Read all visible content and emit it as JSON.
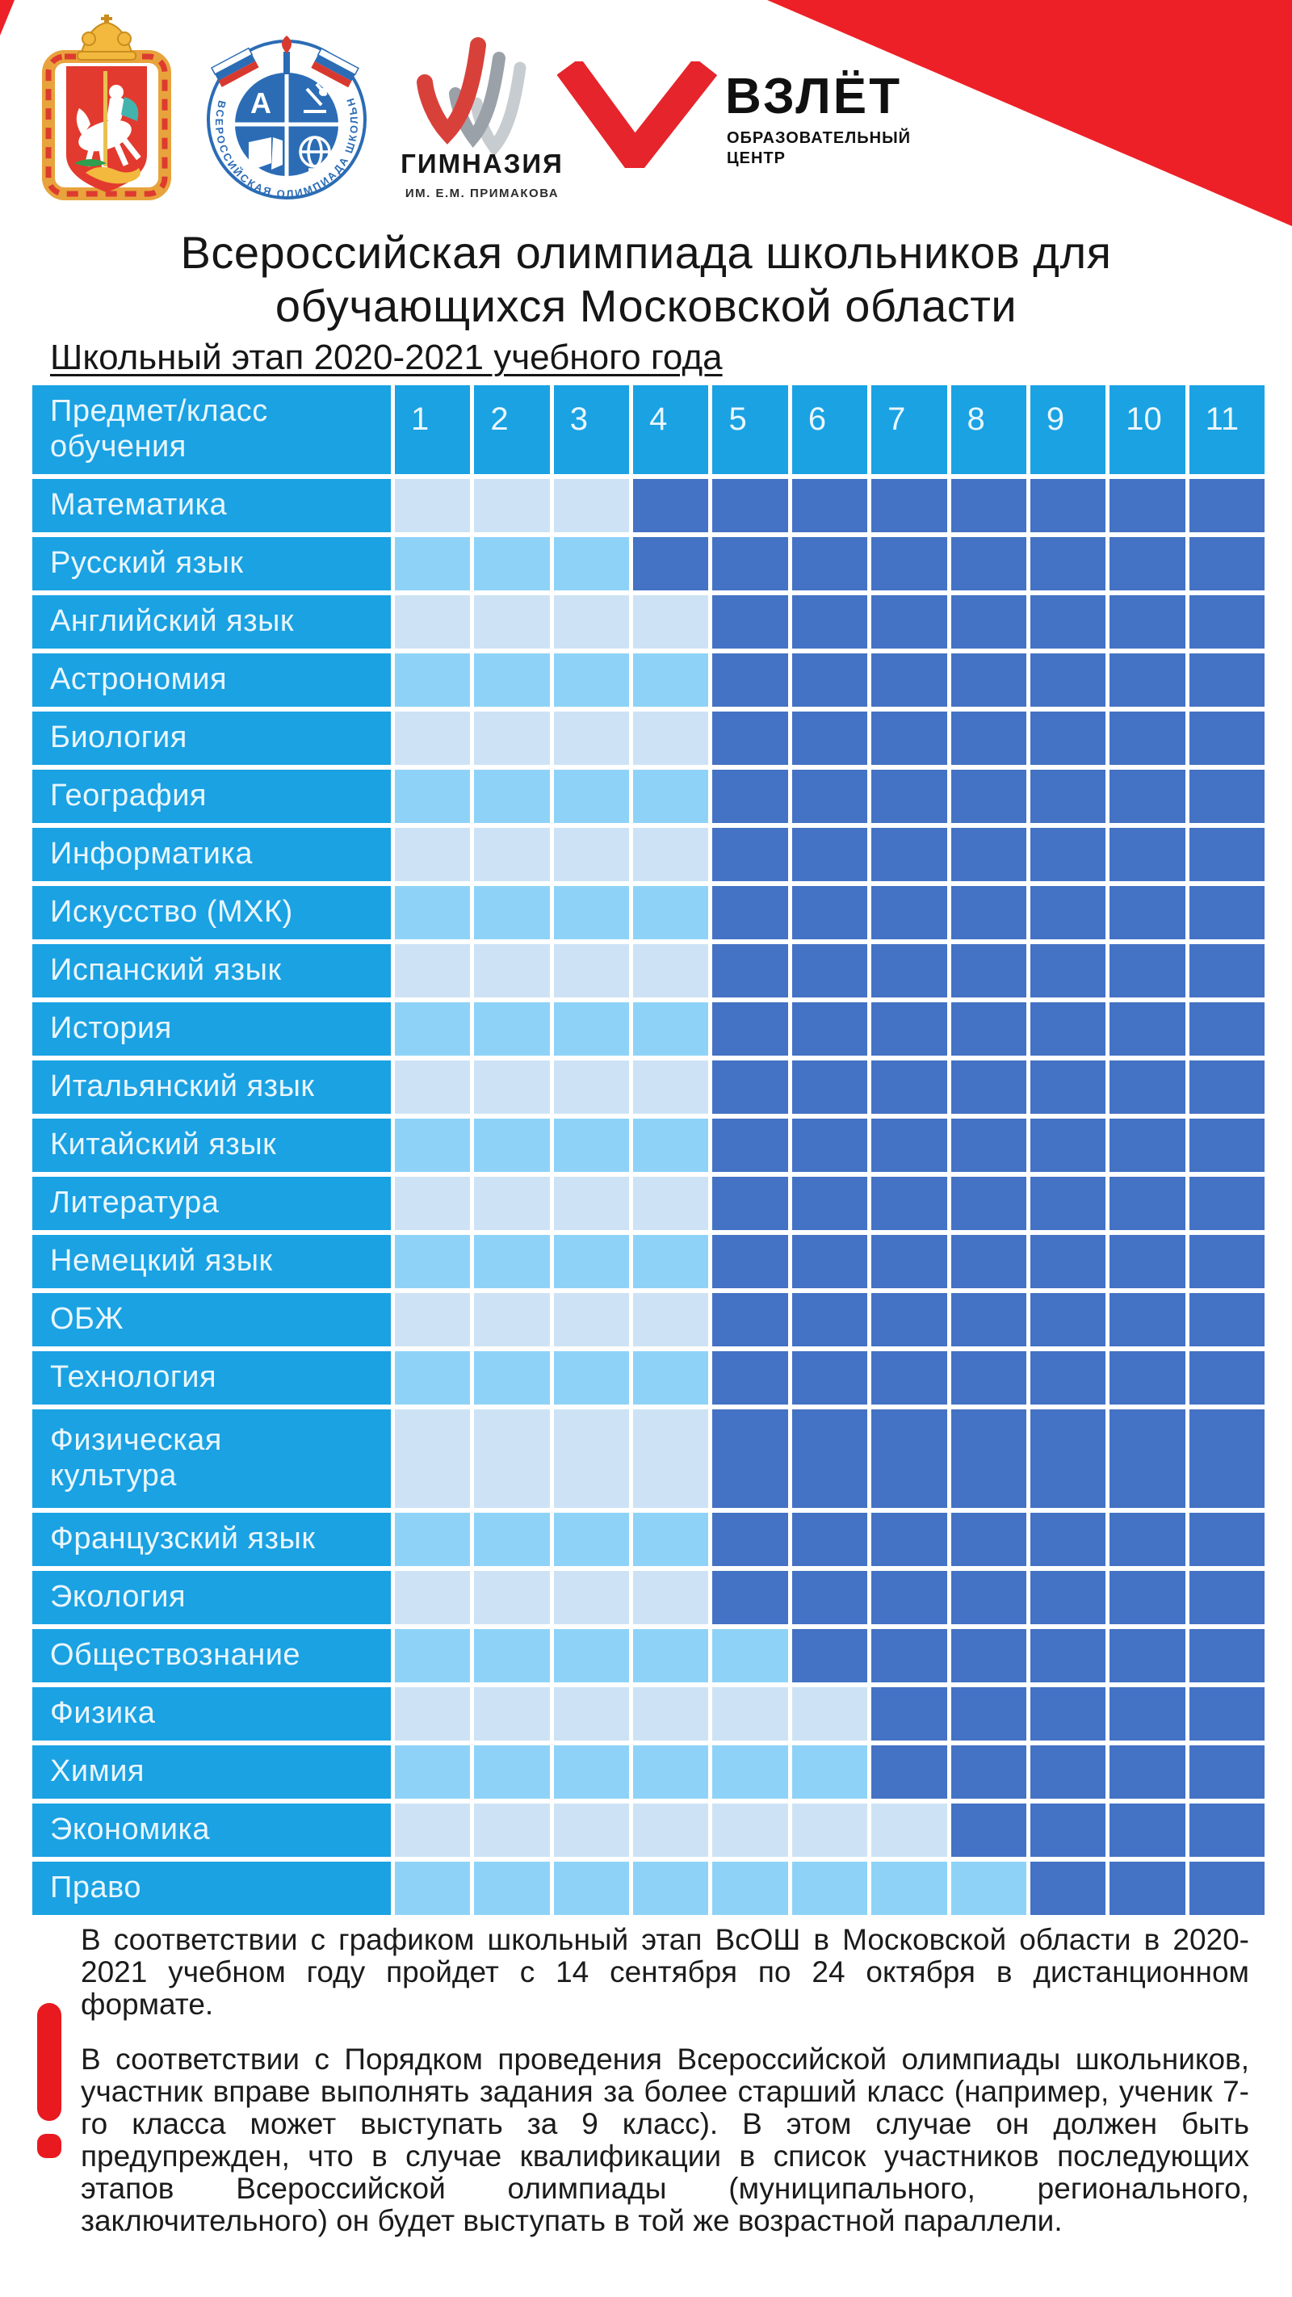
{
  "colors": {
    "cyan": "#1aa2e3",
    "pale": "#cde3f5",
    "sky": "#8ed3f7",
    "dark": "#4472c4",
    "red": "#ed2027",
    "excl": "#e8191f",
    "logo_blue": "#2b6cb5"
  },
  "logos": {
    "coat_of_arms": {
      "alt": "Герб Московской области"
    },
    "vsosh": {
      "ring_text": "ВСЕРОССИЙСКАЯ ОЛИМПИАДА ШКОЛЬНИКОВ"
    },
    "gymnasium": {
      "title": "ГИМНАЗИЯ",
      "subtitle": "ИМ. Е.М. ПРИМАКОВА"
    },
    "vzlet": {
      "title": "ВЗЛЁТ",
      "subtitle_line1": "ОБРАЗОВАТЕЛЬНЫЙ",
      "subtitle_line2": "ЦЕНТР"
    }
  },
  "title": {
    "line1": "Всероссийская олимпиада школьников для",
    "line2": "обучающихся Московской области"
  },
  "subtitle": "Школьный этап 2020-2021 учебного года",
  "table": {
    "header_label": "Предмет/класс обучения",
    "grades": [
      "1",
      "2",
      "3",
      "4",
      "5",
      "6",
      "7",
      "8",
      "9",
      "10",
      "11"
    ],
    "rows": [
      {
        "subject": "Математика",
        "dark_from": 4,
        "shade": "pale"
      },
      {
        "subject": "Русский язык",
        "dark_from": 4,
        "shade": "sky"
      },
      {
        "subject": "Английский язык",
        "dark_from": 5,
        "shade": "pale"
      },
      {
        "subject": "Астрономия",
        "dark_from": 5,
        "shade": "sky"
      },
      {
        "subject": "Биология",
        "dark_from": 5,
        "shade": "pale"
      },
      {
        "subject": "География",
        "dark_from": 5,
        "shade": "sky"
      },
      {
        "subject": "Информатика",
        "dark_from": 5,
        "shade": "pale"
      },
      {
        "subject": "Искусство (МХК)",
        "dark_from": 5,
        "shade": "sky"
      },
      {
        "subject": "Испанский язык",
        "dark_from": 5,
        "shade": "pale"
      },
      {
        "subject": "История",
        "dark_from": 5,
        "shade": "sky"
      },
      {
        "subject": "Итальянский язык",
        "dark_from": 5,
        "shade": "pale"
      },
      {
        "subject": "Китайский язык",
        "dark_from": 5,
        "shade": "sky"
      },
      {
        "subject": "Литература",
        "dark_from": 5,
        "shade": "pale"
      },
      {
        "subject": "Немецкий язык",
        "dark_from": 5,
        "shade": "sky"
      },
      {
        "subject": "ОБЖ",
        "dark_from": 5,
        "shade": "pale"
      },
      {
        "subject": "Технология",
        "dark_from": 5,
        "shade": "sky"
      },
      {
        "subject": "Физическая культура",
        "dark_from": 5,
        "shade": "pale",
        "tall": true
      },
      {
        "subject": "Французский язык",
        "dark_from": 5,
        "shade": "sky"
      },
      {
        "subject": "Экология",
        "dark_from": 5,
        "shade": "pale"
      },
      {
        "subject": "Обществознание",
        "dark_from": 6,
        "shade": "sky"
      },
      {
        "subject": "Физика",
        "dark_from": 7,
        "shade": "pale"
      },
      {
        "subject": "Химия",
        "dark_from": 7,
        "shade": "sky"
      },
      {
        "subject": "Экономика",
        "dark_from": 8,
        "shade": "pale"
      },
      {
        "subject": "Право",
        "dark_from": 9,
        "shade": "sky"
      }
    ]
  },
  "notes": {
    "p1": "В соответствии с графиком школьный этап ВсОШ в Московской области в 2020-2021 учебном году пройдет с 14 сентября по 24 октября в дистанционном формате.",
    "p2": "В соответствии с Порядком проведения Всероссийской олимпиады школьников, участник вправе выполнять задания за более старший класс (например, ученик 7-го класса может выступать за 9 класс). В этом случае он должен быть предупрежден, что в случае квалификации в список участников последующих этапов Всероссийской олимпиады (муниципального, регионального, заключительного) он будет выступать в той же возрастной параллели."
  }
}
